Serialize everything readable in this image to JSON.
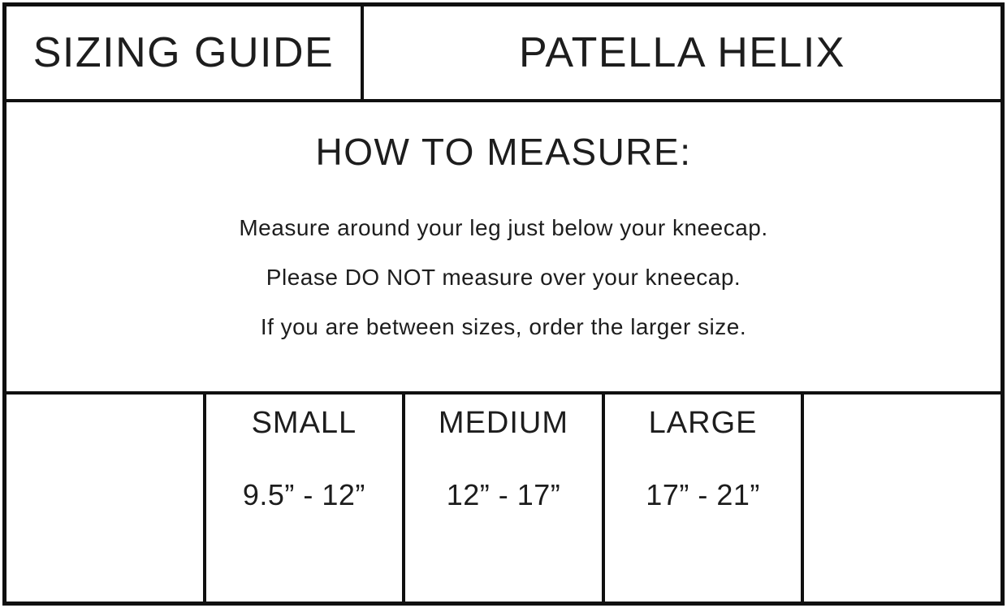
{
  "header": {
    "left_title": "SIZING GUIDE",
    "right_title": "PATELLA HELIX"
  },
  "instructions": {
    "heading": "HOW TO MEASURE:",
    "lines": [
      "Measure around your leg just below your kneecap.",
      "Please DO NOT measure over your kneecap.",
      "If you are between sizes, order the larger size."
    ]
  },
  "size_table": {
    "columns": [
      {
        "label": "",
        "range": ""
      },
      {
        "label": "SMALL",
        "range": "9.5” - 12”"
      },
      {
        "label": "MEDIUM",
        "range": "12” - 17”"
      },
      {
        "label": "LARGE",
        "range": "17” - 21”"
      },
      {
        "label": "",
        "range": ""
      }
    ]
  },
  "colors": {
    "border": "#101010",
    "text": "#1d1d1d",
    "background": "#ffffff"
  }
}
